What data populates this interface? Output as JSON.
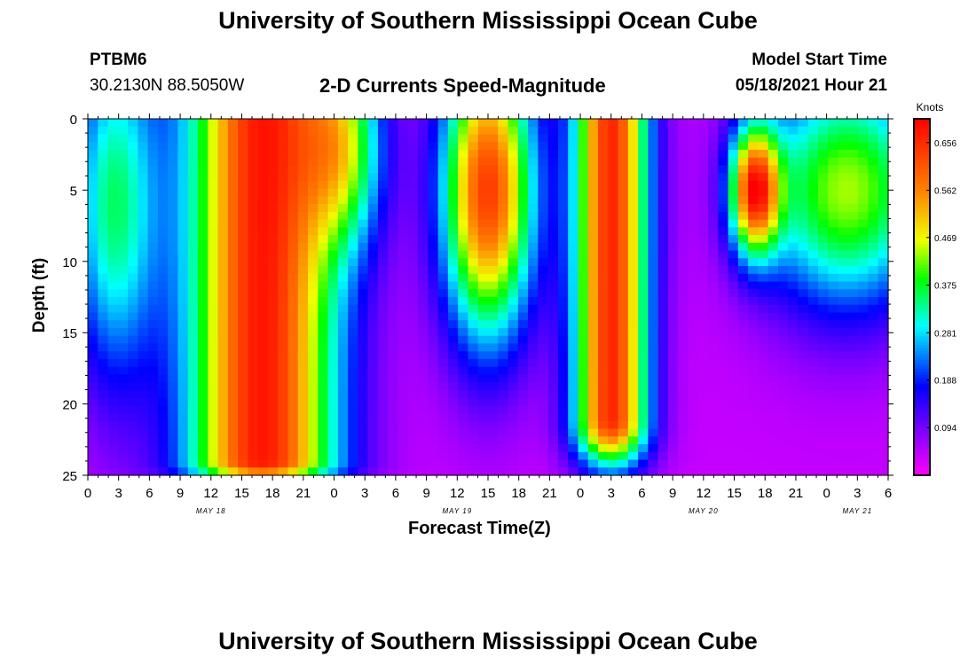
{
  "page": {
    "title_top": "University of Southern Mississippi Ocean Cube",
    "title_bottom": "University of Southern Mississippi Ocean Cube",
    "station": "PTBM6",
    "coords": "30.2130N  88.5050W",
    "model_start_label": "Model Start Time",
    "model_start_value": "05/18/2021 Hour 21"
  },
  "chart_data": {
    "type": "heatmap",
    "title": "2-D Currents Speed-Magnitude",
    "xlabel": "Forecast Time(Z)",
    "ylabel": "Depth (ft)",
    "y_ticks": [
      "0",
      "5",
      "10",
      "15",
      "20",
      "25"
    ],
    "ylim": [
      0,
      25
    ],
    "x_tick_labels": [
      "0",
      "3",
      "6",
      "9",
      "12",
      "15",
      "18",
      "21",
      "0",
      "3",
      "6",
      "9",
      "12",
      "15",
      "18",
      "21",
      "0",
      "3",
      "6",
      "9",
      "12",
      "15",
      "18",
      "21",
      "0",
      "3",
      "6"
    ],
    "x_hours": [
      0,
      78
    ],
    "day_labels": [
      {
        "label": "MAY 18",
        "hour": 12
      },
      {
        "label": "MAY 19",
        "hour": 36
      },
      {
        "label": "MAY 20",
        "hour": 60
      },
      {
        "label": "MAY 21",
        "hour": 75
      }
    ],
    "colorbar": {
      "unit": "Knots",
      "range": [
        0.0,
        0.703
      ],
      "ticks": [
        "0.656",
        "0.562",
        "0.469",
        "0.375",
        "0.281",
        "0.188",
        "0.094"
      ],
      "tick_values": [
        0.656,
        0.562,
        0.469,
        0.375,
        0.281,
        0.188,
        0.094
      ]
    },
    "grid": false,
    "legend": "right"
  }
}
